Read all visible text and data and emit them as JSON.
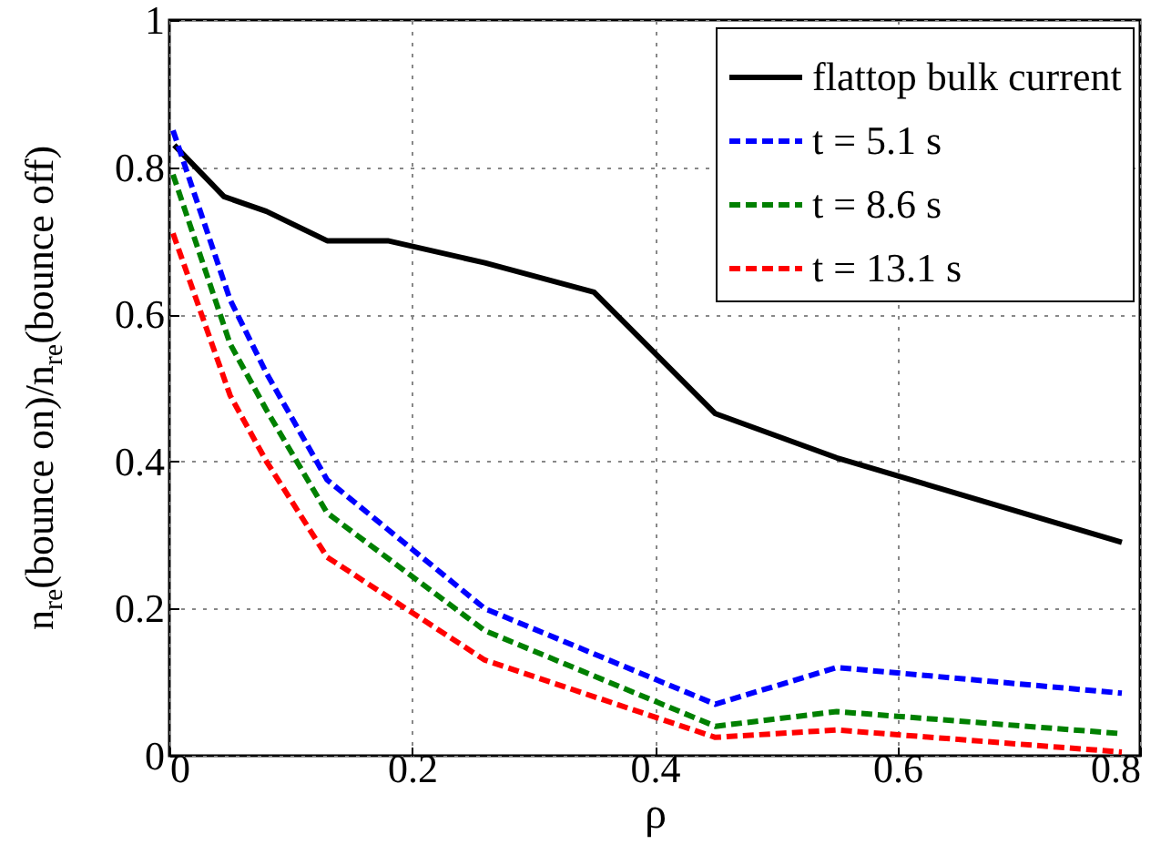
{
  "chart_data": {
    "type": "line",
    "xlabel": "ρ",
    "ylabel": "n$_{re}$(bounce on)/n$_{re}$(bounce off)",
    "xlim": [
      0,
      0.8
    ],
    "xticks": [
      0,
      0.2,
      0.4,
      0.6,
      0.8
    ],
    "ylim": [
      0,
      1
    ],
    "yticks": [
      0,
      0.2,
      0.4,
      0.6,
      0.8,
      1
    ],
    "grid": true,
    "legend": "top right",
    "marker": "none",
    "series": [
      {
        "name": "flattop bulk current",
        "color": "#000000",
        "line_style": "solid",
        "x": [
          0.004,
          0.045,
          0.08,
          0.13,
          0.18,
          0.26,
          0.35,
          0.45,
          0.55,
          0.785
        ],
        "values": [
          0.83,
          0.76,
          0.74,
          0.7,
          0.7,
          0.67,
          0.63,
          0.465,
          0.405,
          0.29
        ]
      },
      {
        "name": "t = 5.1 s",
        "color": "#0000ff",
        "line_style": "dashed",
        "x": [
          0.003,
          0.05,
          0.08,
          0.13,
          0.26,
          0.45,
          0.55,
          0.785
        ],
        "values": [
          0.85,
          0.62,
          0.52,
          0.375,
          0.2,
          0.07,
          0.12,
          0.085
        ]
      },
      {
        "name": "t = 8.6 s",
        "color": "#008000",
        "line_style": "dashed",
        "x": [
          0.003,
          0.05,
          0.08,
          0.13,
          0.26,
          0.45,
          0.55,
          0.785
        ],
        "values": [
          0.79,
          0.56,
          0.47,
          0.33,
          0.17,
          0.04,
          0.06,
          0.03
        ]
      },
      {
        "name": "t = 13.1 s",
        "color": "#ff0000",
        "line_style": "dashed",
        "x": [
          0.003,
          0.05,
          0.08,
          0.13,
          0.26,
          0.45,
          0.55,
          0.785
        ],
        "values": [
          0.71,
          0.49,
          0.4,
          0.27,
          0.13,
          0.025,
          0.035,
          0.005
        ]
      }
    ]
  }
}
